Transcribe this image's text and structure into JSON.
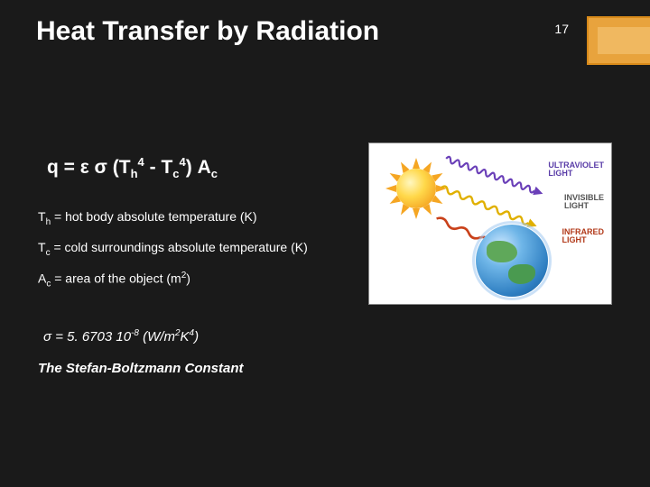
{
  "slide": {
    "title": "Heat Transfer by Radiation",
    "page_number": "17",
    "colors": {
      "background": "#1a1a1a",
      "text": "#ffffff",
      "accent_fill": "#e8a33d",
      "accent_border": "#d88a1a",
      "accent_inner": "#f0b860"
    }
  },
  "equation": {
    "html": "q = ε σ (T<sub>h</sub><sup>4</sup> - T<sub>c</sub><sup>4</sup>) A<sub>c</sub>",
    "fontsize": 21
  },
  "definitions": [
    {
      "html": "T<sub>h</sub> = hot body absolute temperature (K)"
    },
    {
      "html": "T<sub>c</sub> = cold surroundings absolute temperature (K)"
    },
    {
      "html": "A<sub>c</sub> = area of the object  (m<sup>2</sup>)"
    }
  ],
  "sigma": {
    "html": "σ = 5. 6703 10<sup>-8</sup> (W/m<sup>2</sup>K<sup>4</sup>)",
    "value": 5.6703e-08,
    "units": "W/m^2 K^4"
  },
  "constant_label": "The Stefan-Boltzmann Constant",
  "diagram": {
    "type": "infographic",
    "background_color": "#ffffff",
    "sun": {
      "gradient": [
        "#fff7c0",
        "#ffd84a",
        "#f5a623",
        "#e08a00"
      ],
      "ray_count": 12,
      "ray_color": "#f5a623"
    },
    "earth": {
      "gradient": [
        "#cfe8ff",
        "#6fb6e8",
        "#2f7fc2",
        "#145a96"
      ],
      "land_color": "#5fa85a",
      "atmosphere_color": "rgba(160,200,240,0.55)"
    },
    "waves": [
      {
        "key": "uv",
        "color": "#6a3fb8",
        "label": "ULTRAVIOLET\nLIGHT",
        "freq": 10
      },
      {
        "key": "vis",
        "color": "#e0b000",
        "label": "INVISIBLE\nLIGHT",
        "freq": 7
      },
      {
        "key": "ir",
        "color": "#c9411a",
        "label": "INFRARED\nLIGHT",
        "freq": 4
      }
    ],
    "label_fontsize": 9
  }
}
